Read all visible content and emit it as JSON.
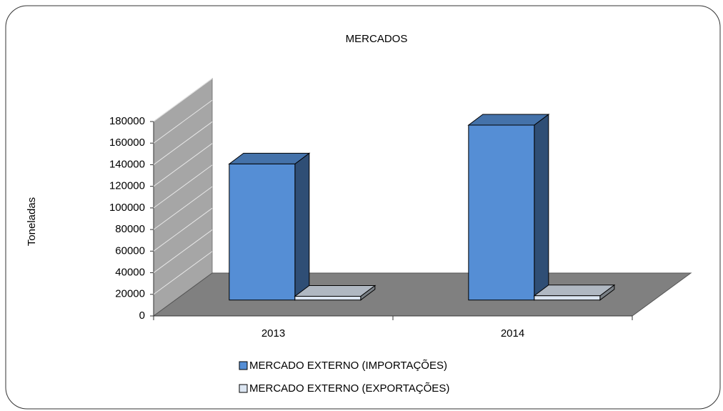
{
  "chart_data": {
    "type": "bar3d",
    "title": "MERCADOS",
    "y_label": "Toneladas",
    "categories": [
      "2013",
      "2014"
    ],
    "series": [
      {
        "name": "MERCADO EXTERNO (IMPORTAÇÕES)",
        "color": "#558ed5",
        "values": [
          126000,
          162000
        ]
      },
      {
        "name": "MERCADO EXTERNO (EXPORTAÇÕES)",
        "color": "#dce6f2",
        "values": [
          3500,
          4000
        ]
      }
    ],
    "ylim": [
      0,
      180000
    ],
    "yticks": [
      0,
      20000,
      40000,
      60000,
      80000,
      100000,
      120000,
      140000,
      160000,
      180000
    ],
    "grid": true,
    "legend": "bottom"
  }
}
